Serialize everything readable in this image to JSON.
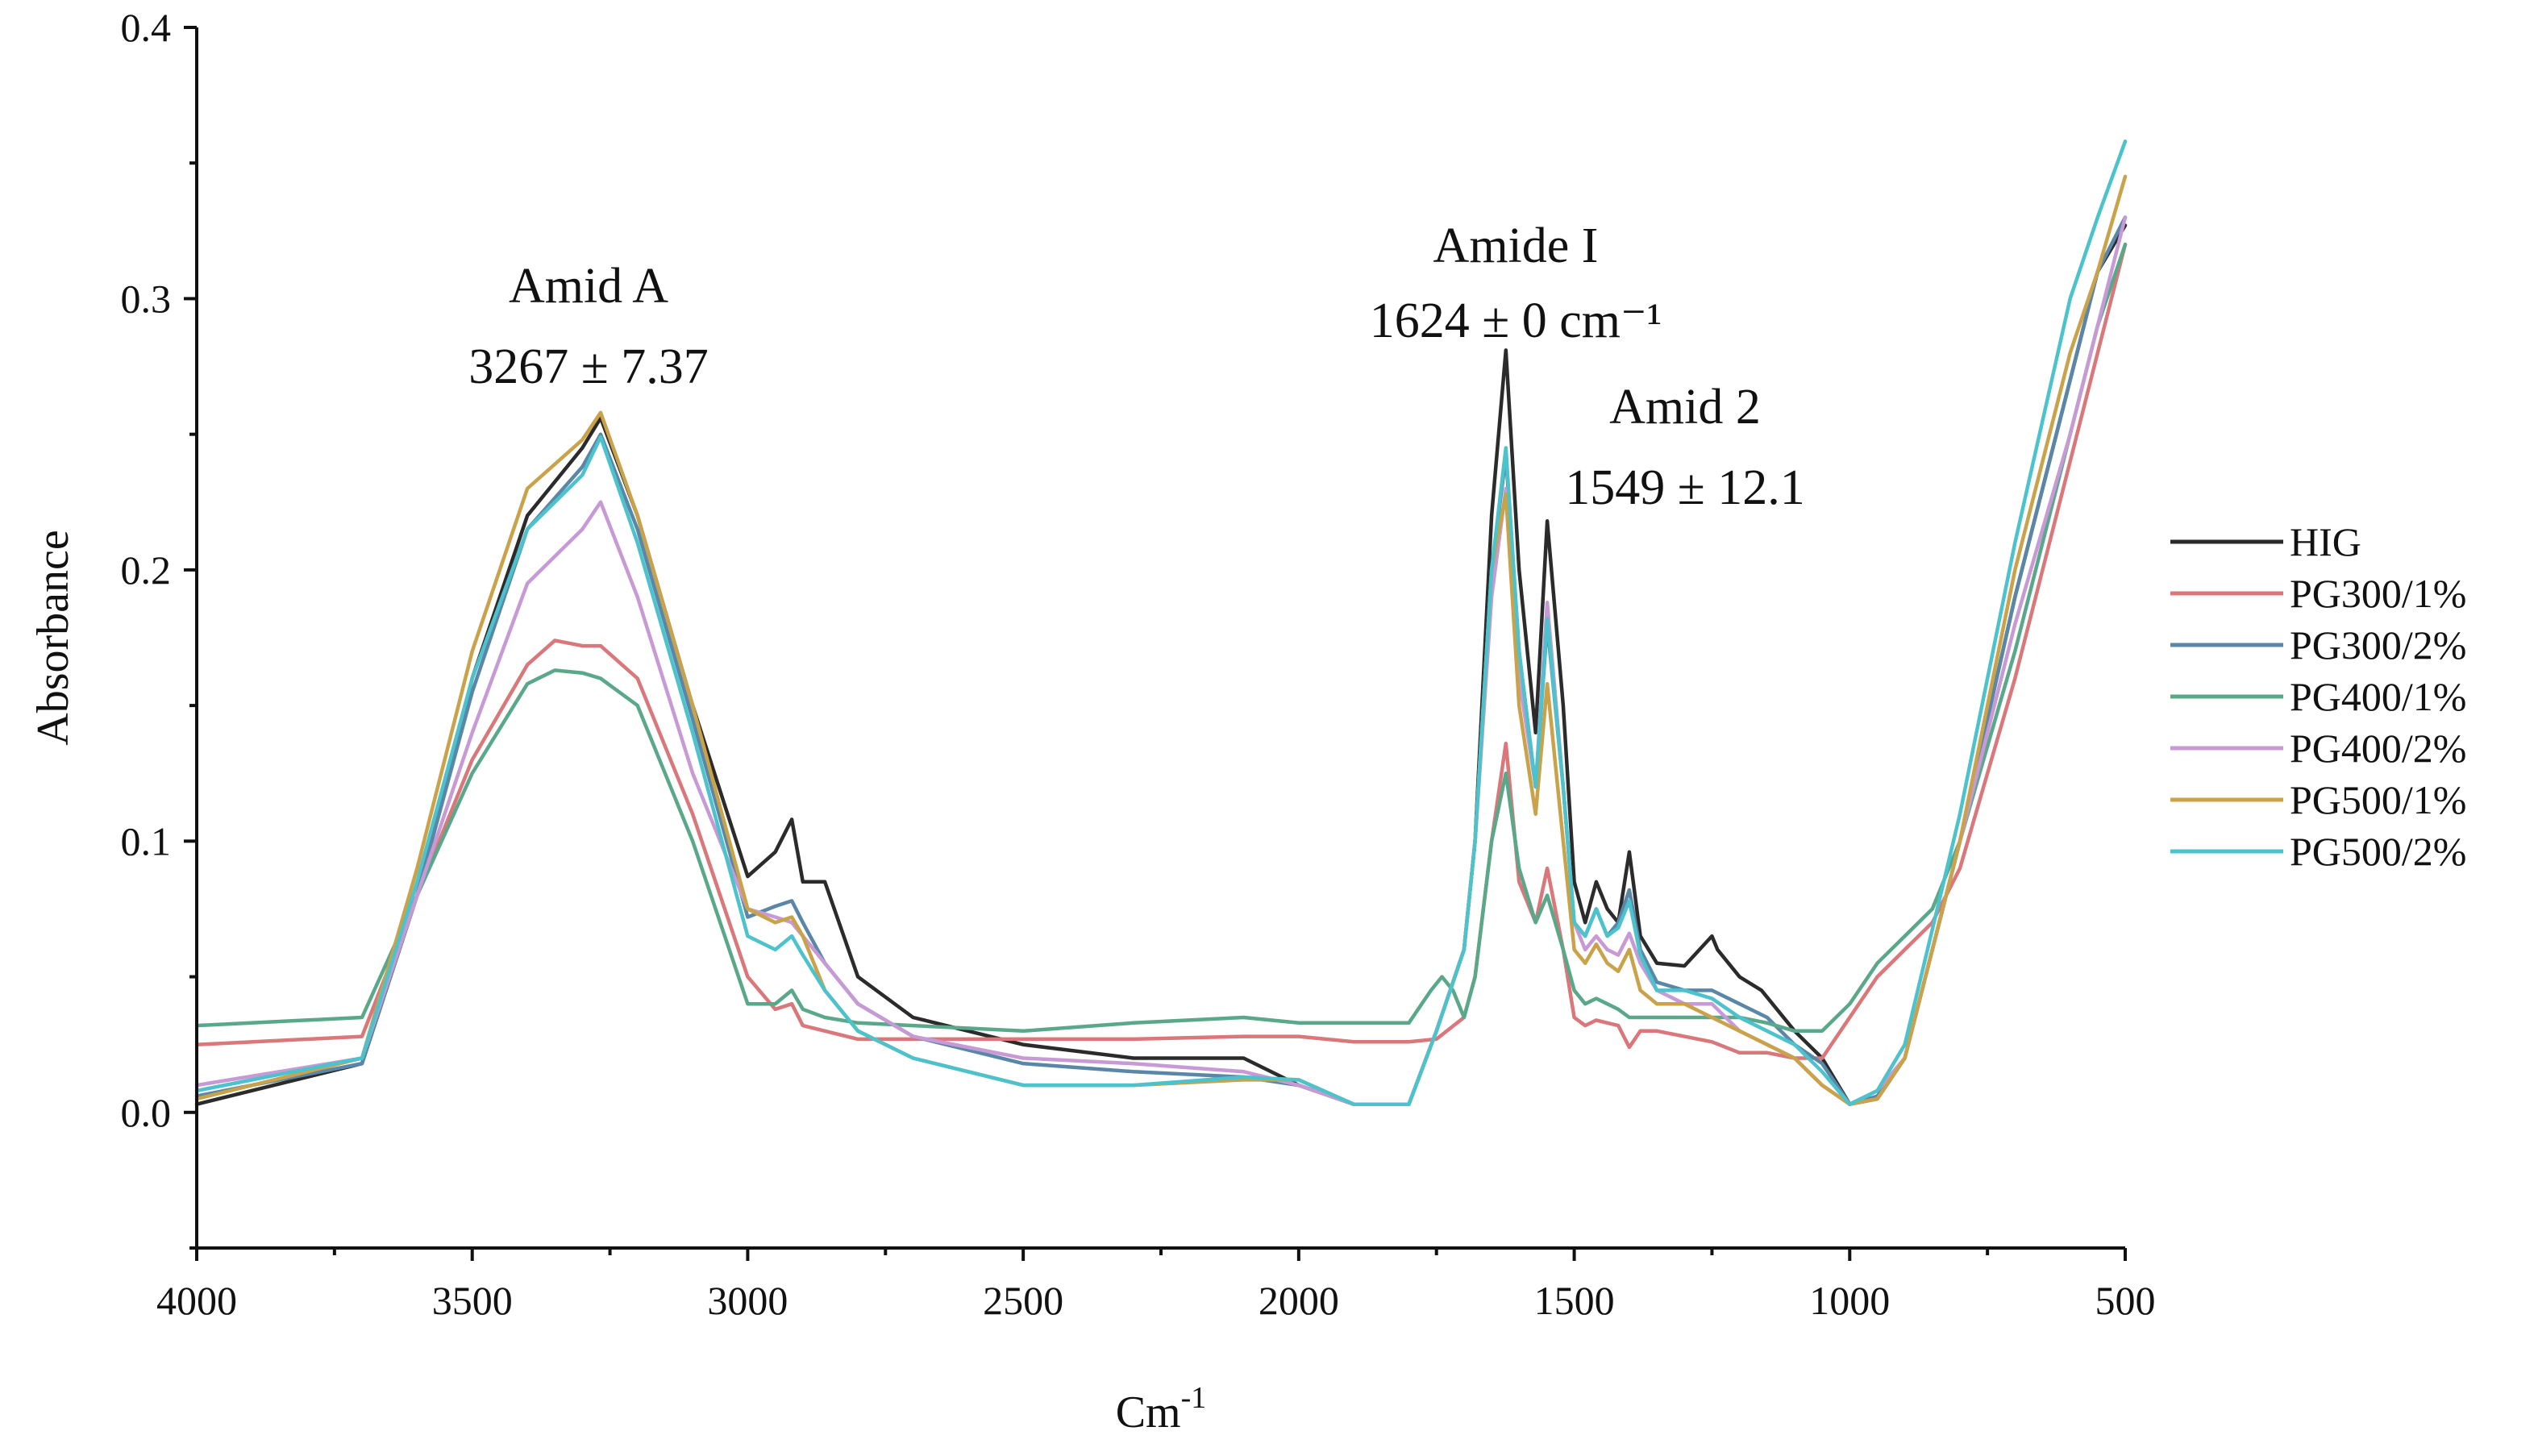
{
  "chart_data": {
    "type": "line",
    "title": "",
    "xlabel": "Cm",
    "xlabel_superscript": "-1",
    "ylabel": "Absorbance",
    "xlim": [
      4000,
      500
    ],
    "ylim": [
      -0.05,
      0.4
    ],
    "xticks": [
      "4000",
      "3500",
      "3000",
      "2500",
      "2000",
      "1500",
      "1000",
      "500"
    ],
    "yticks": [
      "0.0",
      "0.1",
      "0.2",
      "0.3",
      "0.4"
    ],
    "grid": false,
    "legend_position": "right",
    "annotations": [
      {
        "lines": [
          "Amid A",
          "3267 ± 7.37"
        ],
        "x": 3267,
        "y": 0.3
      },
      {
        "lines": [
          "Amide I",
          "1624 ± 0 cm⁻¹"
        ],
        "x": 1624,
        "y": 0.31
      },
      {
        "lines": [
          "Amid 2",
          "1549 ± 12.1"
        ],
        "x": 1549,
        "y": 0.26
      }
    ],
    "series": [
      {
        "name": "HIG",
        "color": "#2b2b2b",
        "x": [
          4000,
          3700,
          3600,
          3500,
          3400,
          3300,
          3267,
          3200,
          3100,
          3000,
          2950,
          2920,
          2900,
          2860,
          2800,
          2700,
          2500,
          2300,
          2100,
          2000,
          1900,
          1800,
          1750,
          1700,
          1680,
          1650,
          1624,
          1600,
          1570,
          1549,
          1520,
          1500,
          1480,
          1460,
          1440,
          1420,
          1400,
          1380,
          1350,
          1300,
          1250,
          1240,
          1200,
          1160,
          1100,
          1050,
          1000,
          950,
          900,
          800,
          700,
          600,
          550,
          500
        ],
        "y": [
          0.003,
          0.018,
          0.08,
          0.16,
          0.22,
          0.245,
          0.256,
          0.22,
          0.15,
          0.087,
          0.096,
          0.108,
          0.085,
          0.085,
          0.05,
          0.035,
          0.025,
          0.02,
          0.02,
          0.01,
          0.003,
          0.003,
          0.03,
          0.06,
          0.1,
          0.22,
          0.281,
          0.2,
          0.14,
          0.218,
          0.15,
          0.085,
          0.07,
          0.085,
          0.075,
          0.07,
          0.096,
          0.065,
          0.055,
          0.054,
          0.065,
          0.06,
          0.05,
          0.045,
          0.03,
          0.02,
          0.003,
          0.005,
          0.02,
          0.1,
          0.19,
          0.27,
          0.31,
          0.327
        ]
      },
      {
        "name": "PG300/1%",
        "color": "#d9777a",
        "x": [
          4000,
          3700,
          3600,
          3500,
          3400,
          3350,
          3300,
          3267,
          3200,
          3100,
          3000,
          2950,
          2920,
          2900,
          2860,
          2800,
          2700,
          2500,
          2300,
          2100,
          2000,
          1900,
          1800,
          1750,
          1700,
          1680,
          1650,
          1624,
          1600,
          1570,
          1549,
          1520,
          1500,
          1480,
          1460,
          1440,
          1420,
          1400,
          1380,
          1350,
          1300,
          1250,
          1200,
          1150,
          1100,
          1050,
          1000,
          950,
          900,
          850,
          800,
          700,
          600,
          550,
          500
        ],
        "y": [
          0.025,
          0.028,
          0.08,
          0.13,
          0.165,
          0.174,
          0.172,
          0.172,
          0.16,
          0.11,
          0.05,
          0.038,
          0.04,
          0.032,
          0.03,
          0.027,
          0.027,
          0.027,
          0.027,
          0.028,
          0.028,
          0.026,
          0.026,
          0.027,
          0.035,
          0.05,
          0.1,
          0.136,
          0.085,
          0.07,
          0.09,
          0.06,
          0.035,
          0.032,
          0.034,
          0.033,
          0.032,
          0.024,
          0.03,
          0.03,
          0.028,
          0.026,
          0.022,
          0.022,
          0.02,
          0.02,
          0.035,
          0.05,
          0.06,
          0.07,
          0.09,
          0.16,
          0.24,
          0.28,
          0.32
        ]
      },
      {
        "name": "PG300/2%",
        "color": "#5a87a8",
        "x": [
          4000,
          3700,
          3600,
          3500,
          3400,
          3300,
          3267,
          3200,
          3100,
          3000,
          2950,
          2920,
          2900,
          2860,
          2800,
          2700,
          2500,
          2300,
          2100,
          2000,
          1900,
          1800,
          1750,
          1700,
          1680,
          1650,
          1624,
          1600,
          1570,
          1549,
          1520,
          1500,
          1480,
          1460,
          1440,
          1420,
          1400,
          1380,
          1350,
          1300,
          1250,
          1200,
          1150,
          1100,
          1050,
          1000,
          950,
          900,
          800,
          700,
          600,
          550,
          500
        ],
        "y": [
          0.006,
          0.018,
          0.08,
          0.155,
          0.215,
          0.238,
          0.25,
          0.215,
          0.145,
          0.072,
          0.076,
          0.078,
          0.07,
          0.055,
          0.04,
          0.028,
          0.018,
          0.015,
          0.013,
          0.01,
          0.003,
          0.003,
          0.03,
          0.06,
          0.1,
          0.2,
          0.242,
          0.17,
          0.12,
          0.18,
          0.12,
          0.07,
          0.065,
          0.075,
          0.065,
          0.07,
          0.082,
          0.06,
          0.048,
          0.045,
          0.045,
          0.04,
          0.035,
          0.025,
          0.018,
          0.003,
          0.006,
          0.02,
          0.1,
          0.19,
          0.27,
          0.31,
          0.33
        ]
      },
      {
        "name": "PG400/1%",
        "color": "#5aa88a",
        "x": [
          4000,
          3700,
          3600,
          3500,
          3400,
          3350,
          3300,
          3267,
          3200,
          3100,
          3000,
          2950,
          2920,
          2900,
          2860,
          2800,
          2700,
          2500,
          2300,
          2100,
          2000,
          1900,
          1800,
          1760,
          1740,
          1720,
          1700,
          1680,
          1650,
          1624,
          1600,
          1570,
          1549,
          1520,
          1500,
          1480,
          1460,
          1440,
          1420,
          1400,
          1380,
          1350,
          1300,
          1250,
          1200,
          1150,
          1100,
          1050,
          1000,
          950,
          900,
          850,
          800,
          700,
          600,
          550,
          500
        ],
        "y": [
          0.032,
          0.035,
          0.08,
          0.125,
          0.158,
          0.163,
          0.162,
          0.16,
          0.15,
          0.1,
          0.04,
          0.04,
          0.045,
          0.038,
          0.035,
          0.033,
          0.032,
          0.03,
          0.033,
          0.035,
          0.033,
          0.033,
          0.033,
          0.045,
          0.05,
          0.045,
          0.035,
          0.05,
          0.1,
          0.125,
          0.09,
          0.07,
          0.08,
          0.06,
          0.045,
          0.04,
          0.042,
          0.04,
          0.038,
          0.035,
          0.035,
          0.035,
          0.035,
          0.035,
          0.035,
          0.033,
          0.03,
          0.03,
          0.04,
          0.055,
          0.065,
          0.075,
          0.1,
          0.17,
          0.25,
          0.29,
          0.32
        ]
      },
      {
        "name": "PG400/2%",
        "color": "#c79ad6",
        "x": [
          4000,
          3700,
          3600,
          3500,
          3400,
          3300,
          3267,
          3200,
          3100,
          3000,
          2950,
          2920,
          2900,
          2860,
          2800,
          2700,
          2500,
          2300,
          2100,
          2000,
          1900,
          1800,
          1750,
          1700,
          1680,
          1650,
          1624,
          1600,
          1570,
          1549,
          1520,
          1500,
          1480,
          1460,
          1440,
          1420,
          1400,
          1380,
          1350,
          1300,
          1250,
          1200,
          1150,
          1100,
          1050,
          1000,
          950,
          900,
          800,
          700,
          600,
          550,
          500
        ],
        "y": [
          0.01,
          0.02,
          0.08,
          0.14,
          0.195,
          0.215,
          0.225,
          0.19,
          0.125,
          0.075,
          0.072,
          0.07,
          0.065,
          0.055,
          0.04,
          0.028,
          0.02,
          0.018,
          0.015,
          0.01,
          0.003,
          0.003,
          0.03,
          0.06,
          0.1,
          0.19,
          0.23,
          0.16,
          0.12,
          0.188,
          0.12,
          0.07,
          0.06,
          0.065,
          0.06,
          0.058,
          0.066,
          0.055,
          0.045,
          0.04,
          0.04,
          0.03,
          0.025,
          0.02,
          0.01,
          0.003,
          0.008,
          0.02,
          0.1,
          0.18,
          0.25,
          0.29,
          0.33
        ]
      },
      {
        "name": "PG500/1%",
        "color": "#c9a24a",
        "x": [
          4000,
          3700,
          3600,
          3500,
          3400,
          3300,
          3267,
          3200,
          3100,
          3000,
          2950,
          2920,
          2900,
          2860,
          2800,
          2700,
          2500,
          2300,
          2100,
          2000,
          1900,
          1800,
          1750,
          1700,
          1680,
          1650,
          1624,
          1600,
          1570,
          1549,
          1520,
          1500,
          1480,
          1460,
          1440,
          1420,
          1400,
          1380,
          1350,
          1300,
          1250,
          1200,
          1150,
          1100,
          1050,
          1000,
          950,
          900,
          800,
          700,
          600,
          550,
          500
        ],
        "y": [
          0.005,
          0.02,
          0.09,
          0.17,
          0.23,
          0.248,
          0.258,
          0.22,
          0.15,
          0.075,
          0.07,
          0.072,
          0.065,
          0.045,
          0.03,
          0.02,
          0.01,
          0.01,
          0.012,
          0.012,
          0.003,
          0.003,
          0.03,
          0.06,
          0.1,
          0.2,
          0.228,
          0.15,
          0.11,
          0.158,
          0.1,
          0.06,
          0.055,
          0.062,
          0.055,
          0.052,
          0.06,
          0.045,
          0.04,
          0.04,
          0.035,
          0.03,
          0.025,
          0.02,
          0.01,
          0.003,
          0.005,
          0.02,
          0.1,
          0.2,
          0.28,
          0.31,
          0.345
        ]
      },
      {
        "name": "PG500/2%",
        "color": "#4cc3cc",
        "x": [
          4000,
          3700,
          3600,
          3500,
          3400,
          3300,
          3267,
          3200,
          3100,
          3000,
          2950,
          2920,
          2900,
          2860,
          2800,
          2700,
          2500,
          2300,
          2100,
          2000,
          1900,
          1800,
          1750,
          1700,
          1680,
          1650,
          1624,
          1600,
          1570,
          1549,
          1520,
          1500,
          1480,
          1460,
          1440,
          1420,
          1400,
          1380,
          1350,
          1300,
          1250,
          1200,
          1150,
          1100,
          1050,
          1000,
          950,
          900,
          800,
          700,
          600,
          550,
          500
        ],
        "y": [
          0.008,
          0.02,
          0.085,
          0.16,
          0.215,
          0.235,
          0.249,
          0.21,
          0.14,
          0.065,
          0.06,
          0.065,
          0.058,
          0.045,
          0.03,
          0.02,
          0.01,
          0.01,
          0.013,
          0.012,
          0.003,
          0.003,
          0.03,
          0.06,
          0.1,
          0.2,
          0.245,
          0.17,
          0.12,
          0.182,
          0.12,
          0.07,
          0.065,
          0.075,
          0.065,
          0.068,
          0.078,
          0.058,
          0.045,
          0.045,
          0.042,
          0.035,
          0.03,
          0.025,
          0.015,
          0.003,
          0.008,
          0.025,
          0.11,
          0.21,
          0.3,
          0.33,
          0.358
        ]
      }
    ]
  }
}
